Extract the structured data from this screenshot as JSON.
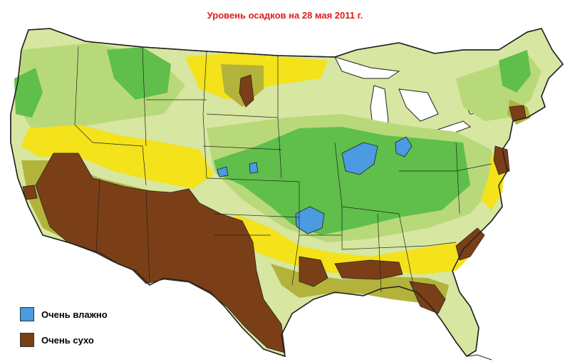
{
  "title": "Уровень осадков на 28 мая 2011 г.",
  "legend": {
    "wet": {
      "label": "Очень влажно",
      "color": "#4a9be0"
    },
    "dry": {
      "label": "Очень сухо",
      "color": "#7b3f17"
    }
  },
  "palette": {
    "very_wet": "#4a9be0",
    "wet": "#5fbf4a",
    "moist": "#b8d97a",
    "normal": "#d7e6a0",
    "dryish": "#f4e21a",
    "dry": "#b3b23a",
    "very_dry": "#7b3f17",
    "water": "#ffffff",
    "border": "#222222"
  }
}
